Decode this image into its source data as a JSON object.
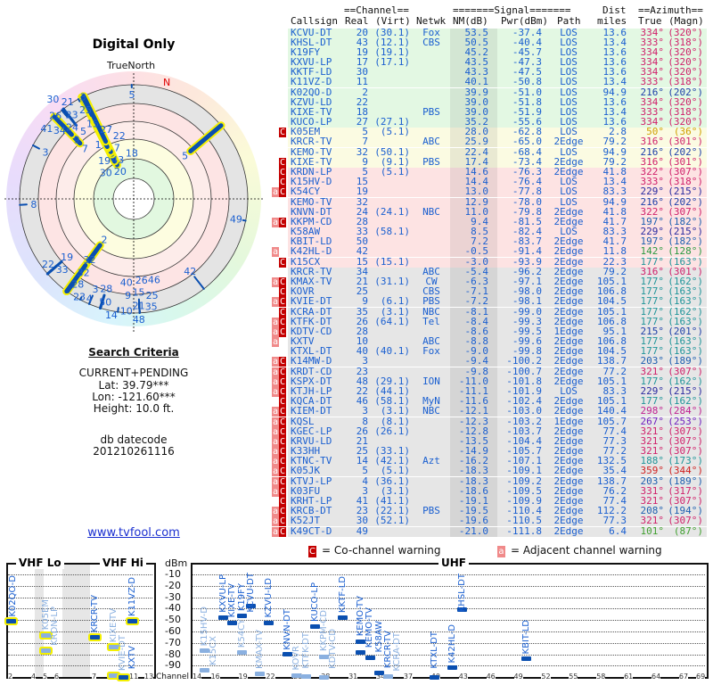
{
  "left": {
    "title": "Digital Only",
    "true_north": "TrueNorth",
    "north_marker": "N",
    "search_criteria_title": "Search Criteria",
    "mode": "CURRENT+PENDING",
    "lat": "Lat: 39.79***",
    "lon": "Lon: -121.60***",
    "height": "Height: 10.0 ft.",
    "db_label": "db datecode",
    "db_code": "201210261116",
    "link": "www.tvfool.com"
  },
  "table": {
    "group_channel": "==Channel==",
    "group_signal": "=======Signal=======",
    "group_dist": "Dist",
    "group_azimuth": "==Azimuth==",
    "h_callsign": "Callsign",
    "h_real": "Real",
    "h_virt": "(Virt)",
    "h_netwk": "Netwk",
    "h_nm": "NM(dB)",
    "h_pwr": "Pwr(dBm)",
    "h_path": "Path",
    "h_miles": "miles",
    "h_true": "True",
    "h_magn": "(Magn)",
    "zone_colors": {
      "g": "#e3f8e3",
      "y": "#fbfbe2",
      "p": "#fde3e3",
      "x": "#e6e6e6"
    },
    "rows": [
      {
        "f": "",
        "call": "KCVU-DT",
        "real": "20",
        "virt": "(30.1)",
        "net": "Fox",
        "nm": "53.5",
        "pwr": "-37.4",
        "path": "LOS",
        "dist": "13.6",
        "tru": "334°",
        "mag": "(320°)",
        "z": "g",
        "c": "#d0206a"
      },
      {
        "f": "",
        "call": "KHSL-DT",
        "real": "43",
        "virt": "(12.1)",
        "net": "CBS",
        "nm": "50.5",
        "pwr": "-40.4",
        "path": "LOS",
        "dist": "13.4",
        "tru": "333°",
        "mag": "(318°)",
        "z": "g",
        "c": "#d0206a"
      },
      {
        "f": "",
        "call": "K19FY",
        "real": "19",
        "virt": "(19.1)",
        "net": "",
        "nm": "45.2",
        "pwr": "-45.7",
        "path": "LOS",
        "dist": "13.6",
        "tru": "334°",
        "mag": "(320°)",
        "z": "g",
        "c": "#d0206a"
      },
      {
        "f": "",
        "call": "KXVU-LP",
        "real": "17",
        "virt": "(17.1)",
        "net": "",
        "nm": "43.5",
        "pwr": "-47.3",
        "path": "LOS",
        "dist": "13.6",
        "tru": "334°",
        "mag": "(320°)",
        "z": "g",
        "c": "#d0206a"
      },
      {
        "f": "",
        "call": "KKTF-LD",
        "real": "30",
        "virt": "",
        "net": "",
        "nm": "43.3",
        "pwr": "-47.5",
        "path": "LOS",
        "dist": "13.6",
        "tru": "334°",
        "mag": "(320°)",
        "z": "g",
        "c": "#d0206a"
      },
      {
        "f": "",
        "call": "K11VZ-D",
        "real": "11",
        "virt": "",
        "net": "",
        "nm": "40.1",
        "pwr": "-50.8",
        "path": "LOS",
        "dist": "13.4",
        "tru": "333°",
        "mag": "(318°)",
        "z": "g",
        "c": "#d0206a"
      },
      {
        "f": "",
        "call": "K02QO-D",
        "real": "2",
        "virt": "",
        "net": "",
        "nm": "39.9",
        "pwr": "-51.0",
        "path": "LOS",
        "dist": "94.9",
        "tru": "216°",
        "mag": "(202°)",
        "z": "g",
        "c": "#1d3fa8"
      },
      {
        "f": "",
        "call": "KZVU-LD",
        "real": "22",
        "virt": "",
        "net": "",
        "nm": "39.0",
        "pwr": "-51.8",
        "path": "LOS",
        "dist": "13.6",
        "tru": "334°",
        "mag": "(320°)",
        "z": "g",
        "c": "#d0206a"
      },
      {
        "f": "",
        "call": "KIXE-TV",
        "real": "18",
        "virt": "",
        "net": "PBS",
        "nm": "39.0",
        "pwr": "-51.9",
        "path": "LOS",
        "dist": "13.4",
        "tru": "333°",
        "mag": "(318°)",
        "z": "g",
        "c": "#d0206a"
      },
      {
        "f": "",
        "call": "KUCO-LP",
        "real": "27",
        "virt": "(27.1)",
        "net": "",
        "nm": "35.2",
        "pwr": "-55.6",
        "path": "LOS",
        "dist": "13.6",
        "tru": "334°",
        "mag": "(320°)",
        "z": "g",
        "c": "#d0206a"
      },
      {
        "f": "C",
        "call": "K05EM",
        "real": "5",
        "virt": "(5.1)",
        "net": "",
        "nm": "28.0",
        "pwr": "-62.8",
        "path": "LOS",
        "dist": "2.8",
        "tru": "50°",
        "mag": "(36°)",
        "z": "y",
        "c": "#d0a000"
      },
      {
        "f": "",
        "call": "KRCR-TV",
        "real": "7",
        "virt": "",
        "net": "ABC",
        "nm": "25.9",
        "pwr": "-65.0",
        "path": "2Edge",
        "dist": "79.2",
        "tru": "316°",
        "mag": "(301°)",
        "z": "y",
        "c": "#d0206a"
      },
      {
        "f": "",
        "call": "KEMO-TV",
        "real": "32",
        "virt": "(50.1)",
        "net": "",
        "nm": "22.4",
        "pwr": "-68.4",
        "path": "LOS",
        "dist": "94.9",
        "tru": "216°",
        "mag": "(202°)",
        "z": "y",
        "c": "#1d3fa8"
      },
      {
        "f": "C",
        "call": "KIXE-TV",
        "real": "9",
        "virt": "(9.1)",
        "net": "PBS",
        "nm": "17.4",
        "pwr": "-73.4",
        "path": "2Edge",
        "dist": "79.2",
        "tru": "316°",
        "mag": "(301°)",
        "z": "y",
        "c": "#d0206a"
      },
      {
        "f": "C",
        "call": "KRDN-LP",
        "real": "5",
        "virt": "(5.1)",
        "net": "",
        "nm": "14.6",
        "pwr": "-76.3",
        "path": "2Edge",
        "dist": "41.8",
        "tru": "322°",
        "mag": "(307°)",
        "z": "p",
        "c": "#d0206a"
      },
      {
        "f": "C",
        "call": "K15HV-D",
        "real": "15",
        "virt": "",
        "net": "",
        "nm": "14.4",
        "pwr": "-76.4",
        "path": "LOS",
        "dist": "13.4",
        "tru": "333°",
        "mag": "(318°)",
        "z": "p",
        "c": "#d0206a"
      },
      {
        "f": "aC",
        "call": "K54CY",
        "real": "19",
        "virt": "",
        "net": "",
        "nm": "13.0",
        "pwr": "-77.8",
        "path": "LOS",
        "dist": "83.3",
        "tru": "229°",
        "mag": "(215°)",
        "z": "p",
        "c": "#2a2aa0"
      },
      {
        "f": "",
        "call": "KEMO-TV",
        "real": "32",
        "virt": "",
        "net": "",
        "nm": "12.9",
        "pwr": "-78.0",
        "path": "LOS",
        "dist": "94.9",
        "tru": "216°",
        "mag": "(202°)",
        "z": "p",
        "c": "#1d3fa8"
      },
      {
        "f": "",
        "call": "KNVN-DT",
        "real": "24",
        "virt": "(24.1)",
        "net": "NBC",
        "nm": "11.0",
        "pwr": "-79.8",
        "path": "2Edge",
        "dist": "41.8",
        "tru": "322°",
        "mag": "(307°)",
        "z": "p",
        "c": "#d0206a"
      },
      {
        "f": "aC",
        "call": "KKPM-CD",
        "real": "28",
        "virt": "",
        "net": "",
        "nm": "9.4",
        "pwr": "-81.5",
        "path": "2Edge",
        "dist": "41.7",
        "tru": "197°",
        "mag": "(182°)",
        "z": "p",
        "c": "#1d5fb0"
      },
      {
        "f": "",
        "call": "K58AW",
        "real": "33",
        "virt": "(58.1)",
        "net": "",
        "nm": "8.5",
        "pwr": "-82.4",
        "path": "LOS",
        "dist": "83.3",
        "tru": "229°",
        "mag": "(215°)",
        "z": "p",
        "c": "#2a2aa0"
      },
      {
        "f": "",
        "call": "KBIT-LD",
        "real": "50",
        "virt": "",
        "net": "",
        "nm": "7.2",
        "pwr": "-83.7",
        "path": "2Edge",
        "dist": "41.7",
        "tru": "197°",
        "mag": "(182°)",
        "z": "p",
        "c": "#1d5fb0"
      },
      {
        "f": "a",
        "call": "K42HL-D",
        "real": "42",
        "virt": "",
        "net": "",
        "nm": "-0.5",
        "pwr": "-91.4",
        "path": "2Edge",
        "dist": "11.8",
        "tru": "142°",
        "mag": "(128°)",
        "z": "p",
        "c": "#2a9a40"
      },
      {
        "f": "C",
        "call": "K15CX",
        "real": "15",
        "virt": "(15.1)",
        "net": "",
        "nm": "-3.0",
        "pwr": "-93.9",
        "path": "2Edge",
        "dist": "22.3",
        "tru": "177°",
        "mag": "(163°)",
        "z": "p",
        "c": "#20959a"
      },
      {
        "f": "",
        "call": "KRCR-TV",
        "real": "34",
        "virt": "",
        "net": "ABC",
        "nm": "-5.4",
        "pwr": "-96.2",
        "path": "2Edge",
        "dist": "79.2",
        "tru": "316°",
        "mag": "(301°)",
        "z": "x",
        "c": "#d0206a"
      },
      {
        "f": "aC",
        "call": "KMAX-TV",
        "real": "21",
        "virt": "(31.1)",
        "net": "CW",
        "nm": "-6.3",
        "pwr": "-97.1",
        "path": "2Edge",
        "dist": "105.1",
        "tru": "177°",
        "mag": "(162°)",
        "z": "x",
        "c": "#20959a"
      },
      {
        "f": "C",
        "call": "KOVR",
        "real": "25",
        "virt": "",
        "net": "CBS",
        "nm": "-7.1",
        "pwr": "-98.0",
        "path": "2Edge",
        "dist": "106.8",
        "tru": "177°",
        "mag": "(163°)",
        "z": "x",
        "c": "#20959a"
      },
      {
        "f": "aC",
        "call": "KVIE-DT",
        "real": "9",
        "virt": "(6.1)",
        "net": "PBS",
        "nm": "-7.2",
        "pwr": "-98.1",
        "path": "2Edge",
        "dist": "104.5",
        "tru": "177°",
        "mag": "(163°)",
        "z": "x",
        "c": "#20959a"
      },
      {
        "f": "C",
        "call": "KCRA-DT",
        "real": "35",
        "virt": "(3.1)",
        "net": "NBC",
        "nm": "-8.1",
        "pwr": "-99.0",
        "path": "2Edge",
        "dist": "105.1",
        "tru": "177°",
        "mag": "(162°)",
        "z": "x",
        "c": "#20959a"
      },
      {
        "f": "aC",
        "call": "KTFK-DT",
        "real": "26",
        "virt": "(64.1)",
        "net": "Tel",
        "nm": "-8.4",
        "pwr": "-99.3",
        "path": "2Edge",
        "dist": "106.8",
        "tru": "177°",
        "mag": "(163°)",
        "z": "x",
        "c": "#20959a"
      },
      {
        "f": "aC",
        "call": "KDTV-CD",
        "real": "28",
        "virt": "",
        "net": "",
        "nm": "-8.6",
        "pwr": "-99.5",
        "path": "1Edge",
        "dist": "95.1",
        "tru": "215°",
        "mag": "(201°)",
        "z": "x",
        "c": "#1d3fa8"
      },
      {
        "f": "a",
        "call": "KXTV",
        "real": "10",
        "virt": "",
        "net": "ABC",
        "nm": "-8.8",
        "pwr": "-99.6",
        "path": "2Edge",
        "dist": "106.8",
        "tru": "177°",
        "mag": "(163°)",
        "z": "x",
        "c": "#20959a"
      },
      {
        "f": "",
        "call": "KTXL-DT",
        "real": "40",
        "virt": "(40.1)",
        "net": "Fox",
        "nm": "-9.0",
        "pwr": "-99.8",
        "path": "2Edge",
        "dist": "104.5",
        "tru": "177°",
        "mag": "(163°)",
        "z": "x",
        "c": "#20959a"
      },
      {
        "f": "aC",
        "call": "K14MW-D",
        "real": "3",
        "virt": "",
        "net": "",
        "nm": "-9.4",
        "pwr": "-100.2",
        "path": "2Edge",
        "dist": "138.7",
        "tru": "203°",
        "mag": "(189°)",
        "z": "x",
        "c": "#1d5fb0"
      },
      {
        "f": "aC",
        "call": "KRDT-CD",
        "real": "23",
        "virt": "",
        "net": "",
        "nm": "-9.8",
        "pwr": "-100.7",
        "path": "2Edge",
        "dist": "77.2",
        "tru": "321°",
        "mag": "(307°)",
        "z": "x",
        "c": "#d0206a"
      },
      {
        "f": "aC",
        "call": "KSPX-DT",
        "real": "48",
        "virt": "(29.1)",
        "net": "ION",
        "nm": "-11.0",
        "pwr": "-101.8",
        "path": "2Edge",
        "dist": "105.1",
        "tru": "177°",
        "mag": "(162°)",
        "z": "x",
        "c": "#20959a"
      },
      {
        "f": "aC",
        "call": "KTJH-LP",
        "real": "22",
        "virt": "(44.1)",
        "net": "",
        "nm": "-11.1",
        "pwr": "-101.9",
        "path": "LOS",
        "dist": "83.3",
        "tru": "229°",
        "mag": "(215°)",
        "z": "x",
        "c": "#2a2aa0"
      },
      {
        "f": "C",
        "call": "KQCA-DT",
        "real": "46",
        "virt": "(58.1)",
        "net": "MyN",
        "nm": "-11.6",
        "pwr": "-102.4",
        "path": "2Edge",
        "dist": "105.1",
        "tru": "177°",
        "mag": "(162°)",
        "z": "x",
        "c": "#20959a"
      },
      {
        "f": "aC",
        "call": "KIEM-DT",
        "real": "3",
        "virt": "(3.1)",
        "net": "NBC",
        "nm": "-12.1",
        "pwr": "-103.0",
        "path": "2Edge",
        "dist": "140.4",
        "tru": "298°",
        "mag": "(284°)",
        "z": "x",
        "c": "#c02090"
      },
      {
        "f": "aC",
        "call": "KQSL",
        "real": "8",
        "virt": "(8.1)",
        "net": "",
        "nm": "-12.3",
        "pwr": "-103.2",
        "path": "1Edge",
        "dist": "105.7",
        "tru": "267°",
        "mag": "(253°)",
        "z": "x",
        "c": "#7020c0"
      },
      {
        "f": "aC",
        "call": "KGEC-LP",
        "real": "26",
        "virt": "(26.1)",
        "net": "",
        "nm": "-12.8",
        "pwr": "-103.7",
        "path": "2Edge",
        "dist": "77.4",
        "tru": "321°",
        "mag": "(307°)",
        "z": "x",
        "c": "#d0206a"
      },
      {
        "f": "aC",
        "call": "KRVU-LD",
        "real": "21",
        "virt": "",
        "net": "",
        "nm": "-13.5",
        "pwr": "-104.4",
        "path": "2Edge",
        "dist": "77.3",
        "tru": "321°",
        "mag": "(307°)",
        "z": "x",
        "c": "#d0206a"
      },
      {
        "f": "aC",
        "call": "K33HH",
        "real": "25",
        "virt": "(33.1)",
        "net": "",
        "nm": "-14.9",
        "pwr": "-105.7",
        "path": "2Edge",
        "dist": "77.2",
        "tru": "321°",
        "mag": "(307°)",
        "z": "x",
        "c": "#d0206a"
      },
      {
        "f": "aC",
        "call": "KTNC-TV",
        "real": "14",
        "virt": "(42.1)",
        "net": "Azt",
        "nm": "-16.2",
        "pwr": "-107.1",
        "path": "2Edge",
        "dist": "132.5",
        "tru": "188°",
        "mag": "(173°)",
        "z": "x",
        "c": "#20959a"
      },
      {
        "f": "aC",
        "call": "K05JK",
        "real": "5",
        "virt": "(5.1)",
        "net": "",
        "nm": "-18.3",
        "pwr": "-109.1",
        "path": "2Edge",
        "dist": "35.4",
        "tru": "359°",
        "mag": "(344°)",
        "z": "x",
        "c": "#d02020"
      },
      {
        "f": "aC",
        "call": "KTVJ-LP",
        "real": "4",
        "virt": "(36.1)",
        "net": "",
        "nm": "-18.3",
        "pwr": "-109.2",
        "path": "2Edge",
        "dist": "138.7",
        "tru": "203°",
        "mag": "(189°)",
        "z": "x",
        "c": "#1d5fb0"
      },
      {
        "f": "aC",
        "call": "K03FU",
        "real": "3",
        "virt": "(3.1)",
        "net": "",
        "nm": "-18.6",
        "pwr": "-109.5",
        "path": "2Edge",
        "dist": "76.2",
        "tru": "331°",
        "mag": "(317°)",
        "z": "x",
        "c": "#d0206a"
      },
      {
        "f": "C",
        "call": "KRHT-LP",
        "real": "41",
        "virt": "(41.1)",
        "net": "",
        "nm": "-19.1",
        "pwr": "-109.9",
        "path": "2Edge",
        "dist": "77.4",
        "tru": "321°",
        "mag": "(307°)",
        "z": "x",
        "c": "#d0206a"
      },
      {
        "f": "aC",
        "call": "KRCB-DT",
        "real": "23",
        "virt": "(22.1)",
        "net": "PBS",
        "nm": "-19.5",
        "pwr": "-110.4",
        "path": "2Edge",
        "dist": "112.2",
        "tru": "208°",
        "mag": "(194°)",
        "z": "x",
        "c": "#1d5fb0"
      },
      {
        "f": "aC",
        "call": "K52JT",
        "real": "30",
        "virt": "(52.1)",
        "net": "",
        "nm": "-19.6",
        "pwr": "-110.5",
        "path": "2Edge",
        "dist": "77.3",
        "tru": "321°",
        "mag": "(307°)",
        "z": "x",
        "c": "#d0206a"
      },
      {
        "f": "aC",
        "call": "K49CT-D",
        "real": "49",
        "virt": "",
        "net": "",
        "nm": "-21.0",
        "pwr": "-111.8",
        "path": "2Edge",
        "dist": "6.4",
        "tru": "101°",
        "mag": "(87°)",
        "z": "x",
        "c": "#40a030"
      }
    ]
  },
  "legend": {
    "co_flag": "C",
    "co_label": "= Co-channel warning",
    "adj_flag": "a",
    "adj_label": "= Adjacent channel warning"
  },
  "spectrum": {
    "vhf_lo": "VHF Lo",
    "vhf_hi": "VHF Hi",
    "uhf": "UHF",
    "dbm_label": "dBm",
    "channel_label": "Channel",
    "dbm_ticks": [
      "-10",
      "-20",
      "-30",
      "-40",
      "-50",
      "-60",
      "-70",
      "-80",
      "-90"
    ],
    "vhf_channel_ticks": [
      "2",
      "4",
      "5",
      "6",
      "7",
      "9",
      "11",
      "13"
    ],
    "uhf_channel_ticks": [
      "14",
      "16",
      "19",
      "22",
      "25",
      "28",
      "31",
      "34",
      "37",
      "40",
      "43",
      "46",
      "49",
      "52",
      "55",
      "58",
      "61",
      "64",
      "67",
      "69"
    ],
    "min_dbm_shown": -100,
    "colors": {
      "strong": "#0a4fb0",
      "weak": "#8ab0e0",
      "highlight": "#f4f000"
    }
  }
}
